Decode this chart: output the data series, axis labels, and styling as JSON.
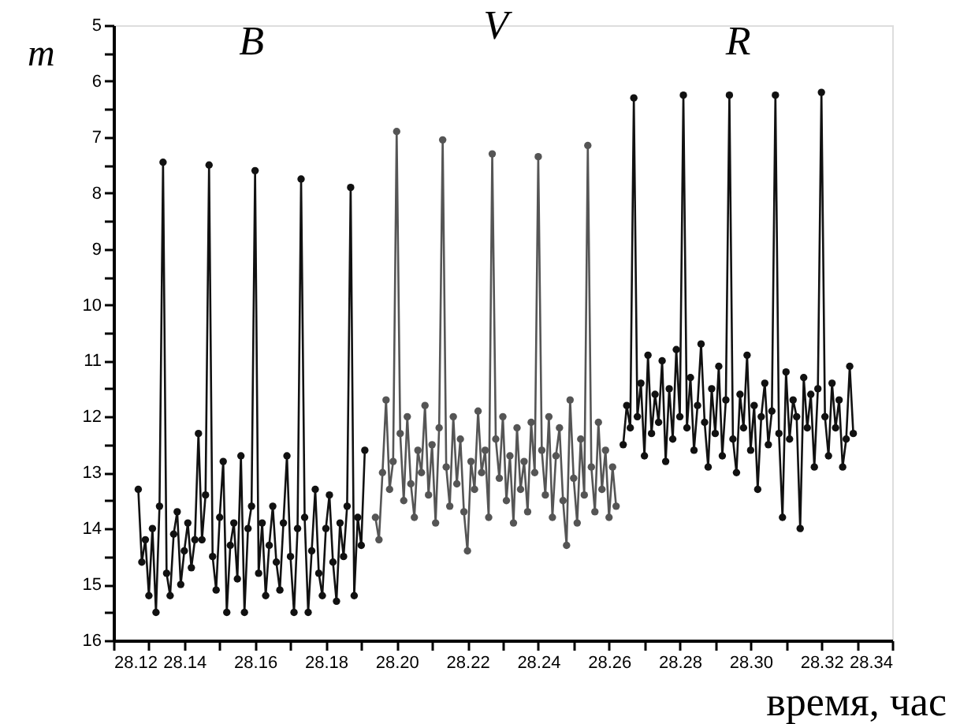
{
  "chart_data": {
    "type": "line",
    "xlabel": "время, час",
    "ylabel": "m",
    "marker": "circle",
    "line_style": "solid",
    "grid": false,
    "xlim": [
      28.12,
      28.34
    ],
    "ylim": [
      16,
      5
    ],
    "xticks": [
      {
        "value": 28.12,
        "label": "28.12"
      },
      {
        "value": 28.13,
        "label": null
      },
      {
        "value": 28.14,
        "label": "28.14"
      },
      {
        "value": 28.15,
        "label": null
      },
      {
        "value": 28.16,
        "label": "28.16"
      },
      {
        "value": 28.17,
        "label": null
      },
      {
        "value": 28.18,
        "label": "28.18"
      },
      {
        "value": 28.19,
        "label": null
      },
      {
        "value": 28.2,
        "label": "28.20"
      },
      {
        "value": 28.21,
        "label": null
      },
      {
        "value": 28.22,
        "label": "28.22"
      },
      {
        "value": 28.23,
        "label": null
      },
      {
        "value": 28.24,
        "label": "28.24"
      },
      {
        "value": 28.25,
        "label": null
      },
      {
        "value": 28.26,
        "label": "28.26"
      },
      {
        "value": 28.27,
        "label": null
      },
      {
        "value": 28.28,
        "label": "28.28"
      },
      {
        "value": 28.29,
        "label": null
      },
      {
        "value": 28.3,
        "label": "28.30"
      },
      {
        "value": 28.31,
        "label": null
      },
      {
        "value": 28.32,
        "label": "28.32"
      },
      {
        "value": 28.33,
        "label": null
      },
      {
        "value": 28.34,
        "label": "28.34"
      }
    ],
    "yticks": [
      5,
      {
        "value": 5.5,
        "label": null
      },
      6,
      {
        "value": 6.5,
        "label": null
      },
      7,
      {
        "value": 7.5,
        "label": null
      },
      8,
      {
        "value": 8.5,
        "label": null
      },
      9,
      {
        "value": 9.5,
        "label": null
      },
      10,
      {
        "value": 10.5,
        "label": null
      },
      11,
      {
        "value": 11.5,
        "label": null
      },
      12,
      {
        "value": 12.5,
        "label": null
      },
      13,
      {
        "value": 13.5,
        "label": null
      },
      14,
      {
        "value": 14.5,
        "label": null
      },
      15,
      {
        "value": 15.5,
        "label": null
      },
      16
    ],
    "series": [
      {
        "name": "B",
        "color": "#111111",
        "x": [
          28.127,
          28.128,
          28.129,
          28.13,
          28.131,
          28.132,
          28.133,
          28.134,
          28.135,
          28.136,
          28.137,
          28.138,
          28.139,
          28.14,
          28.141,
          28.142,
          28.143,
          28.144,
          28.145,
          28.146,
          28.147,
          28.148,
          28.149,
          28.15,
          28.151,
          28.152,
          28.153,
          28.154,
          28.155,
          28.156,
          28.157,
          28.158,
          28.159,
          28.16,
          28.161,
          28.162,
          28.163,
          28.164,
          28.165,
          28.166,
          28.167,
          28.168,
          28.169,
          28.17,
          28.171,
          28.172,
          28.173,
          28.174,
          28.175,
          28.176,
          28.177,
          28.178,
          28.179,
          28.18,
          28.181,
          28.182,
          28.183,
          28.184,
          28.185,
          28.186,
          28.187,
          28.188,
          28.189,
          28.19,
          28.191
        ],
        "values": [
          13.3,
          14.6,
          14.2,
          15.2,
          14.0,
          15.5,
          13.6,
          7.45,
          14.8,
          15.2,
          14.1,
          13.7,
          15.0,
          14.4,
          13.9,
          14.7,
          14.2,
          12.3,
          14.2,
          13.4,
          7.5,
          14.5,
          15.1,
          13.8,
          12.8,
          15.5,
          14.3,
          13.9,
          14.9,
          12.7,
          15.5,
          14.0,
          13.6,
          7.6,
          14.8,
          13.9,
          15.2,
          14.3,
          13.6,
          14.6,
          15.1,
          13.9,
          12.7,
          14.5,
          15.5,
          14.0,
          7.75,
          13.8,
          15.5,
          14.4,
          13.3,
          14.8,
          15.2,
          14.0,
          13.4,
          14.6,
          15.3,
          13.9,
          14.5,
          13.6,
          7.9,
          15.2,
          13.8,
          14.3,
          12.6
        ]
      },
      {
        "name": "V",
        "color": "#555555",
        "x": [
          28.194,
          28.195,
          28.196,
          28.197,
          28.198,
          28.199,
          28.2,
          28.201,
          28.202,
          28.203,
          28.204,
          28.205,
          28.206,
          28.207,
          28.208,
          28.209,
          28.21,
          28.211,
          28.212,
          28.213,
          28.214,
          28.215,
          28.216,
          28.217,
          28.218,
          28.219,
          28.22,
          28.221,
          28.222,
          28.223,
          28.224,
          28.225,
          28.226,
          28.227,
          28.228,
          28.229,
          28.23,
          28.231,
          28.232,
          28.233,
          28.234,
          28.235,
          28.236,
          28.237,
          28.238,
          28.239,
          28.24,
          28.241,
          28.242,
          28.243,
          28.244,
          28.245,
          28.246,
          28.247,
          28.248,
          28.249,
          28.25,
          28.251,
          28.252,
          28.253,
          28.254,
          28.255,
          28.256,
          28.257,
          28.258,
          28.259,
          28.26,
          28.261,
          28.262
        ],
        "values": [
          13.8,
          14.2,
          13.0,
          11.7,
          13.3,
          12.8,
          6.9,
          12.3,
          13.5,
          12.0,
          13.2,
          13.8,
          12.6,
          13.0,
          11.8,
          13.4,
          12.5,
          13.9,
          12.2,
          7.05,
          12.9,
          13.6,
          12.0,
          13.2,
          12.4,
          13.7,
          14.4,
          12.8,
          13.3,
          11.9,
          13.0,
          12.6,
          13.8,
          7.3,
          12.4,
          13.1,
          12.0,
          13.5,
          12.7,
          13.9,
          12.2,
          13.3,
          12.8,
          13.7,
          12.1,
          13.0,
          7.35,
          12.6,
          13.4,
          12.0,
          13.8,
          12.7,
          12.2,
          13.5,
          14.3,
          11.7,
          13.1,
          13.9,
          12.4,
          13.4,
          7.15,
          12.9,
          13.7,
          12.1,
          13.3,
          12.6,
          13.8,
          12.9,
          13.6
        ]
      },
      {
        "name": "R",
        "color": "#111111",
        "x": [
          28.264,
          28.265,
          28.266,
          28.267,
          28.268,
          28.269,
          28.27,
          28.271,
          28.272,
          28.273,
          28.274,
          28.275,
          28.276,
          28.277,
          28.278,
          28.279,
          28.28,
          28.281,
          28.282,
          28.283,
          28.284,
          28.285,
          28.286,
          28.287,
          28.288,
          28.289,
          28.29,
          28.291,
          28.292,
          28.293,
          28.294,
          28.295,
          28.296,
          28.297,
          28.298,
          28.299,
          28.3,
          28.301,
          28.302,
          28.303,
          28.304,
          28.305,
          28.306,
          28.307,
          28.308,
          28.309,
          28.31,
          28.311,
          28.312,
          28.313,
          28.314,
          28.315,
          28.316,
          28.317,
          28.318,
          28.319,
          28.32,
          28.321,
          28.322,
          28.323,
          28.324,
          28.325,
          28.326,
          28.327,
          28.328,
          28.329
        ],
        "values": [
          12.5,
          11.8,
          12.2,
          6.3,
          12.0,
          11.4,
          12.7,
          10.9,
          12.3,
          11.6,
          12.1,
          11.0,
          12.8,
          11.5,
          12.4,
          10.8,
          12.0,
          6.25,
          12.2,
          11.3,
          12.6,
          11.8,
          10.7,
          12.1,
          12.9,
          11.5,
          12.3,
          11.1,
          12.7,
          11.7,
          6.25,
          12.4,
          13.0,
          11.6,
          12.2,
          10.9,
          12.6,
          11.8,
          13.3,
          12.0,
          11.4,
          12.5,
          11.9,
          6.25,
          12.3,
          13.8,
          11.2,
          12.4,
          11.7,
          12.0,
          14.0,
          11.3,
          12.2,
          11.6,
          12.9,
          11.5,
          6.2,
          12.0,
          12.7,
          11.4,
          12.2,
          11.7,
          12.9,
          12.4,
          11.1,
          12.3
        ]
      }
    ]
  }
}
